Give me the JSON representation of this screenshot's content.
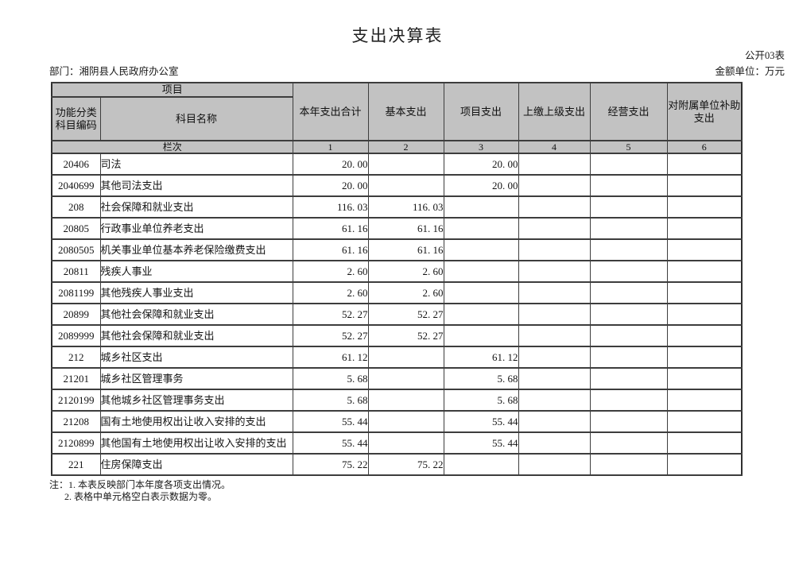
{
  "page": {
    "title": "支出决算表",
    "table_code": "公开03表",
    "department_label": "部门：湘阴县人民政府办公室",
    "unit_label": "金额单位：万元"
  },
  "table": {
    "header": {
      "project_group": "项目",
      "code_label": "功能分类科目编码",
      "name_label": "科目名称",
      "columns": [
        "本年支出合计",
        "基本支出",
        "项目支出",
        "上缴上级支出",
        "经营支出",
        "对附属单位补助支出"
      ],
      "lanci_label": "栏次",
      "lanci_numbers": [
        "1",
        "2",
        "3",
        "4",
        "5",
        "6"
      ]
    },
    "rows": [
      {
        "code": "20406",
        "name": "司法",
        "values": [
          "20. 00",
          "",
          "20. 00",
          "",
          "",
          ""
        ]
      },
      {
        "code": "2040699",
        "name": "其他司法支出",
        "values": [
          "20. 00",
          "",
          "20. 00",
          "",
          "",
          ""
        ]
      },
      {
        "code": "208",
        "name": "社会保障和就业支出",
        "values": [
          "116. 03",
          "116. 03",
          "",
          "",
          "",
          ""
        ]
      },
      {
        "code": "20805",
        "name": "行政事业单位养老支出",
        "values": [
          "61. 16",
          "61. 16",
          "",
          "",
          "",
          ""
        ]
      },
      {
        "code": "2080505",
        "name": "机关事业单位基本养老保险缴费支出",
        "values": [
          "61. 16",
          "61. 16",
          "",
          "",
          "",
          ""
        ]
      },
      {
        "code": "20811",
        "name": "残疾人事业",
        "values": [
          "2. 60",
          "2. 60",
          "",
          "",
          "",
          ""
        ]
      },
      {
        "code": "2081199",
        "name": "其他残疾人事业支出",
        "values": [
          "2. 60",
          "2. 60",
          "",
          "",
          "",
          ""
        ]
      },
      {
        "code": "20899",
        "name": "其他社会保障和就业支出",
        "values": [
          "52. 27",
          "52. 27",
          "",
          "",
          "",
          ""
        ]
      },
      {
        "code": "2089999",
        "name": "其他社会保障和就业支出",
        "values": [
          "52. 27",
          "52. 27",
          "",
          "",
          "",
          ""
        ]
      },
      {
        "code": "212",
        "name": "城乡社区支出",
        "values": [
          "61. 12",
          "",
          "61. 12",
          "",
          "",
          ""
        ]
      },
      {
        "code": "21201",
        "name": "城乡社区管理事务",
        "values": [
          "5. 68",
          "",
          "5. 68",
          "",
          "",
          ""
        ]
      },
      {
        "code": "2120199",
        "name": "其他城乡社区管理事务支出",
        "values": [
          "5. 68",
          "",
          "5. 68",
          "",
          "",
          ""
        ]
      },
      {
        "code": "21208",
        "name": "国有土地使用权出让收入安排的支出",
        "values": [
          "55. 44",
          "",
          "55. 44",
          "",
          "",
          ""
        ]
      },
      {
        "code": "2120899",
        "name": "其他国有土地使用权出让收入安排的支出",
        "values": [
          "55. 44",
          "",
          "55. 44",
          "",
          "",
          ""
        ]
      },
      {
        "code": "221",
        "name": "住房保障支出",
        "values": [
          "75. 22",
          "75. 22",
          "",
          "",
          "",
          ""
        ]
      }
    ]
  },
  "notes": [
    "注：1. 本表反映部门本年度各项支出情况。",
    "2. 表格中单元格空白表示数据为零。"
  ],
  "colors": {
    "header_bg": "#c2c2c2",
    "border": "#3d3d3d",
    "text": "#1a1a1a"
  }
}
